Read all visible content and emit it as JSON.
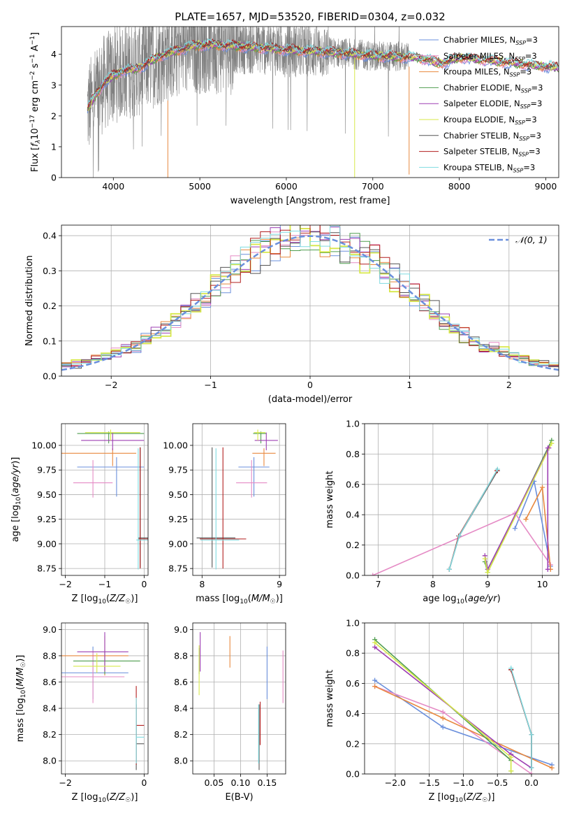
{
  "figure": {
    "title": "PLATE=1657, MJD=53520, FIBERID=0304, z=0.032"
  },
  "colors": {
    "Chabrier MILES": "#6a8fdc",
    "Salpeter MILES": "#e58bc5",
    "Kroupa MILES": "#e8883e",
    "Chabrier ELODIE": "#4f9d4f",
    "Salpeter ELODIE": "#9d3fb3",
    "Kroupa ELODIE": "#d7e84a",
    "Chabrier STELIB": "#555555",
    "Salpeter STELIB": "#b21f1f",
    "Kroupa STELIB": "#7fdbe0",
    "data": "#808080",
    "normal": "#6a8fdc"
  },
  "chart_data": [
    {
      "id": "spectrum",
      "type": "line",
      "xlabel": "wavelength [Angstrom, rest frame]",
      "ylabel": "Flux [f_λ 10^-17 erg cm^-2 s^-1 A^-1]",
      "xlim": [
        3400,
        9150
      ],
      "ylim": [
        0,
        4.9
      ],
      "xticks": [
        4000,
        5000,
        6000,
        7000,
        8000,
        9000
      ],
      "yticks": [
        0,
        1,
        2,
        3,
        4
      ],
      "grid": false,
      "legend_position": "top-right",
      "data_range": [
        3700,
        7420
      ],
      "model_range": [
        3700,
        9200
      ],
      "continuum": [
        [
          3700,
          2.2
        ],
        [
          3800,
          2.7
        ],
        [
          3900,
          3.1
        ],
        [
          4000,
          3.3
        ],
        [
          4100,
          3.45
        ],
        [
          4300,
          3.55
        ],
        [
          4500,
          3.9
        ],
        [
          4700,
          4.1
        ],
        [
          4900,
          4.25
        ],
        [
          5000,
          4.3
        ],
        [
          5200,
          4.3
        ],
        [
          5500,
          4.25
        ],
        [
          5800,
          4.2
        ],
        [
          6000,
          4.15
        ],
        [
          6300,
          4.1
        ],
        [
          6600,
          4.05
        ],
        [
          7000,
          3.95
        ],
        [
          7500,
          3.9
        ],
        [
          7800,
          3.7
        ],
        [
          8000,
          3.9
        ],
        [
          8500,
          3.75
        ],
        [
          9000,
          3.6
        ],
        [
          9200,
          3.55
        ]
      ],
      "legend": [
        "Chabrier MILES, N_SSP=3",
        "Salpeter MILES, N_SSP=3",
        "Kroupa MILES, N_SSP=3",
        "Chabrier ELODIE, N_SSP=3",
        "Salpeter ELODIE, N_SSP=3",
        "Kroupa ELODIE, N_SSP=3",
        "Chabrier STELIB, N_SSP=3",
        "Salpeter STELIB, N_SSP=3",
        "Kroupa STELIB, N_SSP=3"
      ]
    },
    {
      "id": "residuals",
      "type": "line",
      "xlabel": "(data-model)/error",
      "ylabel": "Normed distribution",
      "xlim": [
        -2.5,
        2.5
      ],
      "ylim": [
        0,
        0.43
      ],
      "xticks": [
        -2,
        -1,
        0,
        1,
        2
      ],
      "yticks": [
        0.0,
        0.1,
        0.2,
        0.3,
        0.4
      ],
      "grid": true,
      "legend_position": "top-right",
      "legend": [
        "𝒩(0, 1)"
      ],
      "bin_width": 0.1
    },
    {
      "id": "age_vs_Z",
      "type": "scatter",
      "xlabel": "Z [log10(Z/Z☉)]",
      "ylabel": "age  [log10(age/yr)]",
      "xlim": [
        -2.1,
        0.1
      ],
      "ylim": [
        8.68,
        10.22
      ],
      "xticks": [
        -2,
        -1,
        0
      ],
      "yticks": [
        8.75,
        9.0,
        9.25,
        9.5,
        9.75,
        10.0
      ],
      "grid": true,
      "points": [
        {
          "model": "Chabrier MILES",
          "x": -0.7,
          "xerr": [
            1.0,
            0.7
          ],
          "y": 9.78,
          "yerr": [
            0.3,
            0.1
          ]
        },
        {
          "model": "Salpeter MILES",
          "x": -1.3,
          "xerr": [
            0.5,
            0.5
          ],
          "y": 9.62,
          "yerr": [
            0.15,
            0.23
          ]
        },
        {
          "model": "Kroupa MILES",
          "x": -0.8,
          "xerr": [
            1.4,
            0.6
          ],
          "y": 9.92,
          "yerr": [
            0.13,
            0.05
          ]
        },
        {
          "model": "Chabrier ELODIE",
          "x": -0.9,
          "xerr": [
            0.8,
            0.9
          ],
          "y": 10.12,
          "yerr": [
            0.1,
            0.02
          ]
        },
        {
          "model": "Salpeter ELODIE",
          "x": -0.8,
          "xerr": [
            0.8,
            0.8
          ],
          "y": 10.05,
          "yerr": [
            0.1,
            0.08
          ]
        },
        {
          "model": "Kroupa ELODIE",
          "x": -0.85,
          "xerr": [
            0.65,
            0.75
          ],
          "y": 10.13,
          "yerr": [
            0.08,
            0.03
          ]
        },
        {
          "model": "Chabrier STELIB",
          "x": -0.1,
          "xerr": [
            0.05,
            0.3
          ],
          "y": 9.06,
          "yerr": [
            0.3,
            0.92
          ]
        },
        {
          "model": "Salpeter STELIB",
          "x": -0.1,
          "xerr": [
            0.05,
            0.3
          ],
          "y": 9.05,
          "yerr": [
            0.3,
            0.93
          ]
        },
        {
          "model": "Kroupa STELIB",
          "x": -0.15,
          "xerr": [
            0.05,
            0.3
          ],
          "y": 9.04,
          "yerr": [
            0.3,
            0.93
          ]
        }
      ]
    },
    {
      "id": "age_vs_mass",
      "type": "scatter",
      "xlabel": "mass [log10(M/M☉)]",
      "ylabel": "",
      "xlim": [
        7.88,
        9.08
      ],
      "ylim": [
        8.68,
        10.22
      ],
      "xticks": [
        8,
        9
      ],
      "yticks": [
        8.75,
        9.0,
        9.25,
        9.5,
        9.75,
        10.0
      ],
      "grid": true,
      "points": [
        {
          "model": "Chabrier MILES",
          "x": 8.67,
          "xerr": [
            0.2,
            0.2
          ],
          "y": 9.78,
          "yerr": [
            0.3,
            0.1
          ]
        },
        {
          "model": "Salpeter MILES",
          "x": 8.64,
          "xerr": [
            0.2,
            0.2
          ],
          "y": 9.62,
          "yerr": [
            0.15,
            0.23
          ]
        },
        {
          "model": "Kroupa MILES",
          "x": 8.8,
          "xerr": [
            0.15,
            0.15
          ],
          "y": 9.92,
          "yerr": [
            0.13,
            0.05
          ]
        },
        {
          "model": "Chabrier ELODIE",
          "x": 8.76,
          "xerr": [
            0.1,
            0.07
          ],
          "y": 10.12,
          "yerr": [
            0.1,
            0.02
          ]
        },
        {
          "model": "Salpeter ELODIE",
          "x": 8.83,
          "xerr": [
            0.15,
            0.15
          ],
          "y": 10.05,
          "yerr": [
            0.1,
            0.08
          ]
        },
        {
          "model": "Kroupa ELODIE",
          "x": 8.72,
          "xerr": [
            0.05,
            0.1
          ],
          "y": 10.13,
          "yerr": [
            0.08,
            0.03
          ]
        },
        {
          "model": "Chabrier STELIB",
          "x": 8.13,
          "xerr": [
            0.2,
            0.3
          ],
          "y": 9.06,
          "yerr": [
            0.3,
            0.92
          ]
        },
        {
          "model": "Salpeter STELIB",
          "x": 8.27,
          "xerr": [
            0.3,
            0.3
          ],
          "y": 9.05,
          "yerr": [
            0.3,
            0.93
          ]
        },
        {
          "model": "Kroupa STELIB",
          "x": 8.18,
          "xerr": [
            0.2,
            0.3
          ],
          "y": 9.04,
          "yerr": [
            0.3,
            0.93
          ]
        }
      ]
    },
    {
      "id": "weight_vs_age",
      "type": "line",
      "xlabel": "age  [log10(age/yr)]",
      "ylabel": "mass weight",
      "xlim": [
        6.75,
        10.3
      ],
      "ylim": [
        0,
        1.0
      ],
      "xticks": [
        7,
        8,
        9,
        10
      ],
      "yticks": [
        0.0,
        0.2,
        0.4,
        0.6,
        0.8,
        1.0
      ],
      "grid": true,
      "series": [
        {
          "model": "Chabrier MILES",
          "x": [
            9.5,
            9.85,
            10.15
          ],
          "y": [
            0.31,
            0.62,
            0.06
          ]
        },
        {
          "model": "Salpeter MILES",
          "x": [
            6.9,
            9.5,
            10.15
          ],
          "y": [
            0.0,
            0.41,
            0.07
          ]
        },
        {
          "model": "Kroupa MILES",
          "x": [
            9.7,
            10.0,
            10.15
          ],
          "y": [
            0.37,
            0.58,
            0.04
          ]
        },
        {
          "model": "Chabrier ELODIE",
          "x": [
            8.95,
            9.0,
            10.17
          ],
          "y": [
            0.09,
            0.02,
            0.89
          ]
        },
        {
          "model": "Salpeter ELODIE",
          "x": [
            8.95,
            9.0,
            10.12
          ],
          "y": [
            0.13,
            0.04,
            0.84
          ]
        },
        {
          "model": "Kroupa ELODIE",
          "x": [
            8.95,
            9.0,
            10.17
          ],
          "y": [
            0.11,
            0.02,
            0.87
          ]
        },
        {
          "model": "Chabrier STELIB",
          "x": [
            8.3,
            8.48,
            9.18
          ],
          "y": [
            0.04,
            0.26,
            0.69
          ]
        },
        {
          "model": "Salpeter STELIB",
          "x": [
            8.3,
            8.47,
            9.17
          ],
          "y": [
            0.04,
            0.26,
            0.69
          ]
        },
        {
          "model": "Kroupa STELIB",
          "x": [
            8.3,
            8.48,
            9.18
          ],
          "y": [
            0.04,
            0.26,
            0.7
          ]
        },
        {
          "model": "Salpeter ELODIE",
          "x": [
            10.1,
            10.1
          ],
          "y": [
            0.04,
            0.84
          ]
        }
      ]
    },
    {
      "id": "mass_vs_Z",
      "type": "scatter",
      "xlabel": "Z [log10(Z/Z☉)]",
      "ylabel": "mass [log10(M/M☉)]",
      "xlim": [
        -2.1,
        0.1
      ],
      "ylim": [
        7.9,
        9.05
      ],
      "xticks": [
        -2,
        0
      ],
      "yticks": [
        8.0,
        8.2,
        8.4,
        8.6,
        8.8,
        9.0
      ],
      "grid": true,
      "points": [
        {
          "model": "Chabrier MILES",
          "x": -1.3,
          "xerr": [
            0.8,
            0.9
          ],
          "y": 8.67,
          "yerr": [
            0.2,
            0.2
          ]
        },
        {
          "model": "Salpeter MILES",
          "x": -1.3,
          "xerr": [
            0.8,
            0.8
          ],
          "y": 8.64,
          "yerr": [
            0.2,
            0.2
          ]
        },
        {
          "model": "Kroupa MILES",
          "x": -1.0,
          "xerr": [
            1.1,
            0.6
          ],
          "y": 8.8,
          "yerr": [
            0.15,
            0.15
          ]
        },
        {
          "model": "Chabrier ELODIE",
          "x": -1.0,
          "xerr": [
            0.8,
            0.9
          ],
          "y": 8.76,
          "yerr": [
            0.1,
            0.07
          ]
        },
        {
          "model": "Salpeter ELODIE",
          "x": -1.0,
          "xerr": [
            0.7,
            0.6
          ],
          "y": 8.83,
          "yerr": [
            0.15,
            0.15
          ]
        },
        {
          "model": "Kroupa ELODIE",
          "x": -1.2,
          "xerr": [
            0.6,
            0.6
          ],
          "y": 8.72,
          "yerr": [
            0.05,
            0.1
          ]
        },
        {
          "model": "Chabrier STELIB",
          "x": -0.2,
          "xerr": [
            0.0,
            0.2
          ],
          "y": 8.13,
          "yerr": [
            0.2,
            0.3
          ]
        },
        {
          "model": "Salpeter STELIB",
          "x": -0.2,
          "xerr": [
            0.0,
            0.2
          ],
          "y": 8.27,
          "yerr": [
            0.3,
            0.3
          ]
        },
        {
          "model": "Kroupa STELIB",
          "x": -0.2,
          "xerr": [
            0.0,
            0.2
          ],
          "y": 8.18,
          "yerr": [
            0.2,
            0.3
          ]
        }
      ]
    },
    {
      "id": "mass_vs_EBV",
      "type": "scatter",
      "xlabel": "E(B-V)",
      "ylabel": "",
      "xlim": [
        0.01,
        0.185
      ],
      "ylim": [
        7.9,
        9.05
      ],
      "xticks": [
        0.05,
        0.1,
        0.15
      ],
      "xticklabels": [
        "0.05",
        "0.10",
        "0.15"
      ],
      "yticks": [
        8.0,
        8.2,
        8.4,
        8.6,
        8.8,
        9.0
      ],
      "grid": true,
      "points": [
        {
          "model": "Chabrier MILES",
          "x": 0.15,
          "xerr": [
            0,
            0
          ],
          "y": 8.67,
          "yerr": [
            0.2,
            0.2
          ]
        },
        {
          "model": "Salpeter MILES",
          "x": 0.18,
          "xerr": [
            0,
            0
          ],
          "y": 8.64,
          "yerr": [
            0.2,
            0.2
          ]
        },
        {
          "model": "Kroupa MILES",
          "x": 0.08,
          "xerr": [
            0,
            0
          ],
          "y": 8.83,
          "yerr": [
            0.12,
            0.12
          ]
        },
        {
          "model": "Chabrier ELODIE",
          "x": 0.022,
          "xerr": [
            0,
            0
          ],
          "y": 8.76,
          "yerr": [
            0.1,
            0.1
          ]
        },
        {
          "model": "Salpeter ELODIE",
          "x": 0.024,
          "xerr": [
            0,
            0
          ],
          "y": 8.83,
          "yerr": [
            0.15,
            0.15
          ]
        },
        {
          "model": "Kroupa ELODIE",
          "x": 0.022,
          "xerr": [
            0,
            0
          ],
          "y": 8.7,
          "yerr": [
            0.2,
            0.18
          ]
        },
        {
          "model": "Chabrier STELIB",
          "x": 0.135,
          "xerr": [
            0,
            0
          ],
          "y": 8.13,
          "yerr": [
            0.2,
            0.3
          ]
        },
        {
          "model": "Salpeter STELIB",
          "x": 0.137,
          "xerr": [
            0,
            0
          ],
          "y": 8.27,
          "yerr": [
            0.15,
            0.18
          ]
        },
        {
          "model": "Kroupa STELIB",
          "x": 0.134,
          "xerr": [
            0,
            0
          ],
          "y": 8.18,
          "yerr": [
            0.2,
            0.25
          ]
        }
      ]
    },
    {
      "id": "weight_vs_Z",
      "type": "line",
      "xlabel": "Z [log10(Z/Z☉)]",
      "ylabel": "mass weight",
      "xlim": [
        -2.45,
        0.4
      ],
      "ylim": [
        0,
        1.0
      ],
      "xticks": [
        -2.0,
        -1.5,
        -1.0,
        -0.5,
        0.0
      ],
      "xticklabels": [
        "−2.0",
        "−1.5",
        "−1.0",
        "−0.5",
        "0.0"
      ],
      "yticks": [
        0.0,
        0.2,
        0.4,
        0.6,
        0.8,
        1.0
      ],
      "grid": true,
      "series": [
        {
          "model": "Chabrier MILES",
          "x": [
            -2.3,
            -1.3,
            0.3
          ],
          "y": [
            0.62,
            0.31,
            0.06
          ]
        },
        {
          "model": "Salpeter MILES",
          "x": [
            -2.3,
            -1.3,
            0.0
          ],
          "y": [
            0.58,
            0.41,
            0.0
          ]
        },
        {
          "model": "Kroupa MILES",
          "x": [
            -2.3,
            -1.3,
            0.3
          ],
          "y": [
            0.58,
            0.37,
            0.04
          ]
        },
        {
          "model": "Chabrier ELODIE",
          "x": [
            -2.3,
            -0.3,
            -0.3
          ],
          "y": [
            0.89,
            0.09,
            0.02
          ]
        },
        {
          "model": "Salpeter ELODIE",
          "x": [
            -2.3,
            -0.3,
            0.0
          ],
          "y": [
            0.84,
            0.13,
            0.04
          ]
        },
        {
          "model": "Kroupa ELODIE",
          "x": [
            -2.3,
            -0.3,
            -0.3
          ],
          "y": [
            0.87,
            0.11,
            0.02
          ]
        },
        {
          "model": "Chabrier STELIB",
          "x": [
            -0.3,
            0.0,
            0.0
          ],
          "y": [
            0.69,
            0.26,
            0.04
          ]
        },
        {
          "model": "Salpeter STELIB",
          "x": [
            -0.3,
            0.0,
            0.0
          ],
          "y": [
            0.69,
            0.26,
            0.04
          ]
        },
        {
          "model": "Kroupa STELIB",
          "x": [
            -0.3,
            0.0,
            0.0
          ],
          "y": [
            0.7,
            0.26,
            0.04
          ]
        }
      ]
    }
  ]
}
